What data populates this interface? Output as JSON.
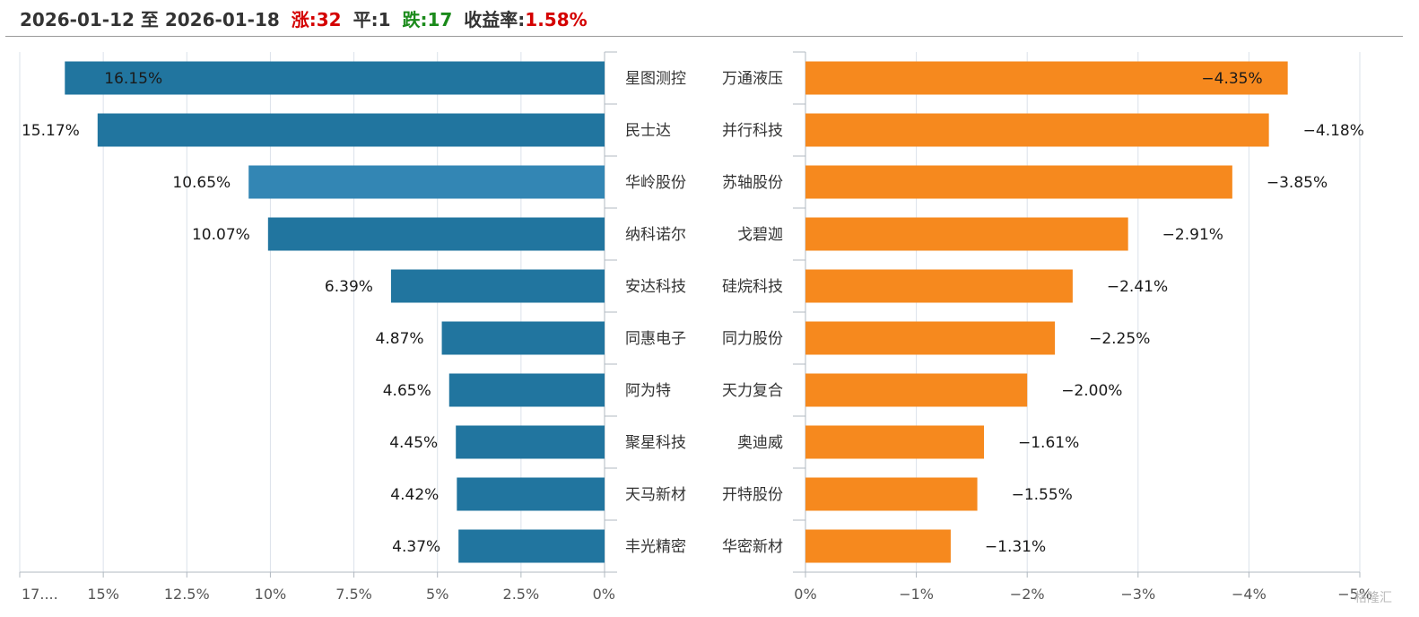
{
  "header": {
    "date_range": "2026-01-12 至 2026-01-18",
    "up_label": "涨:",
    "up_count": "32",
    "flat_label": "平:",
    "flat_count": "1",
    "down_label": "跌:",
    "down_count": "17",
    "return_label": "收益率:",
    "return_value": "1.58%"
  },
  "watermark": "格隆汇",
  "colors": {
    "up": "#d40000",
    "down": "#1a8a1a",
    "gain_bar": "#21759f",
    "gain_bar_highlight": "#3386b4",
    "loss_bar": "#f6891e",
    "grid": "#dbe2ea",
    "axis": "#b0b8c0"
  },
  "chart_data": [
    {
      "type": "bar",
      "orientation": "horizontal",
      "direction": "right-to-left",
      "categories": [
        "星图测控",
        "民士达",
        "华岭股份",
        "纳科诺尔",
        "安达科技",
        "同惠电子",
        "阿为特",
        "聚星科技",
        "天马新材",
        "丰光精密"
      ],
      "values": [
        16.15,
        15.17,
        10.65,
        10.07,
        6.39,
        4.87,
        4.65,
        4.45,
        4.42,
        4.37
      ],
      "value_labels": [
        "16.15%",
        "15.17%",
        "10.65%",
        "10.07%",
        "6.39%",
        "4.87%",
        "4.65%",
        "4.45%",
        "4.42%",
        "4.37%"
      ],
      "highlighted_index": 2,
      "xlim": [
        0,
        17.5
      ],
      "x_ticks": [
        17.5,
        15,
        12.5,
        10,
        7.5,
        5,
        2.5,
        0
      ],
      "x_tick_labels": [
        "17....",
        "15%",
        "12.5%",
        "10%",
        "7.5%",
        "5%",
        "2.5%",
        "0%"
      ],
      "grid": true
    },
    {
      "type": "bar",
      "orientation": "horizontal",
      "direction": "left-to-right",
      "categories": [
        "万通液压",
        "并行科技",
        "苏轴股份",
        "戈碧迦",
        "硅烷科技",
        "同力股份",
        "天力复合",
        "奥迪威",
        "开特股份",
        "华密新材"
      ],
      "values": [
        -4.35,
        -4.18,
        -3.85,
        -2.91,
        -2.41,
        -2.25,
        -2.0,
        -1.61,
        -1.55,
        -1.31
      ],
      "value_labels": [
        "−4.35%",
        "−4.18%",
        "−3.85%",
        "−2.91%",
        "−2.41%",
        "−2.25%",
        "−2.00%",
        "−1.61%",
        "−1.55%",
        "−1.31%"
      ],
      "xlim": [
        0,
        -5
      ],
      "x_ticks": [
        0,
        -1,
        -2,
        -3,
        -4,
        -5
      ],
      "x_tick_labels": [
        "0%",
        "−1%",
        "−2%",
        "−3%",
        "−4%",
        "−5%"
      ],
      "grid": true
    }
  ]
}
